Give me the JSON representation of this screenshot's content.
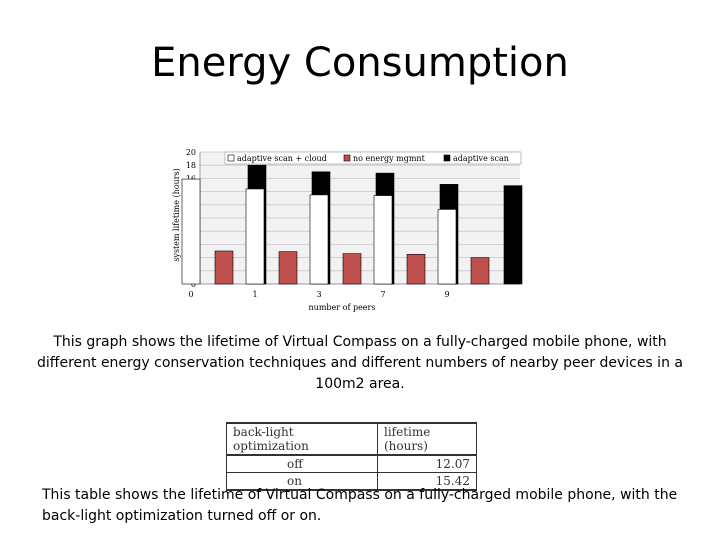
{
  "slide": {
    "title": "Energy Consumption",
    "caption_chart": "This graph shows the lifetime of Virtual Compass on a fully-charged mobile phone, with different energy conservation techniques and different numbers of nearby peer devices in a 100m2 area.",
    "caption_table": "This table shows the lifetime of Virtual Compass on a fully-charged mobile phone, with the back-light optimization turned off or on."
  },
  "chart_data": {
    "type": "bar",
    "title": "",
    "xlabel": "number of peers",
    "ylabel": "system lifetime (hours)",
    "ylim": [
      0,
      20
    ],
    "yticks": [
      0,
      2,
      4,
      6,
      8,
      10,
      12,
      14,
      16,
      18,
      20
    ],
    "categories": [
      "0",
      "1",
      "3",
      "7",
      "9"
    ],
    "legend_position": "top",
    "series": [
      {
        "name": "adaptive scan + cloud",
        "color": "#ffffff",
        "values": [
          15.9,
          14.4,
          13.5,
          13.4,
          11.3
        ]
      },
      {
        "name": "no energy mgmnt",
        "color": "#c0504d",
        "values": [
          5.0,
          4.9,
          4.6,
          4.5,
          4.0
        ]
      },
      {
        "name": "adaptive scan",
        "color": "#000000",
        "values": [
          18.0,
          17.0,
          16.8,
          15.1,
          14.9
        ]
      }
    ]
  },
  "table": {
    "headers": [
      "back-light optimization",
      "lifetime (hours)"
    ],
    "rows": [
      {
        "label": "off",
        "value": "12.07"
      },
      {
        "label": "on",
        "value": "15.42"
      }
    ]
  }
}
